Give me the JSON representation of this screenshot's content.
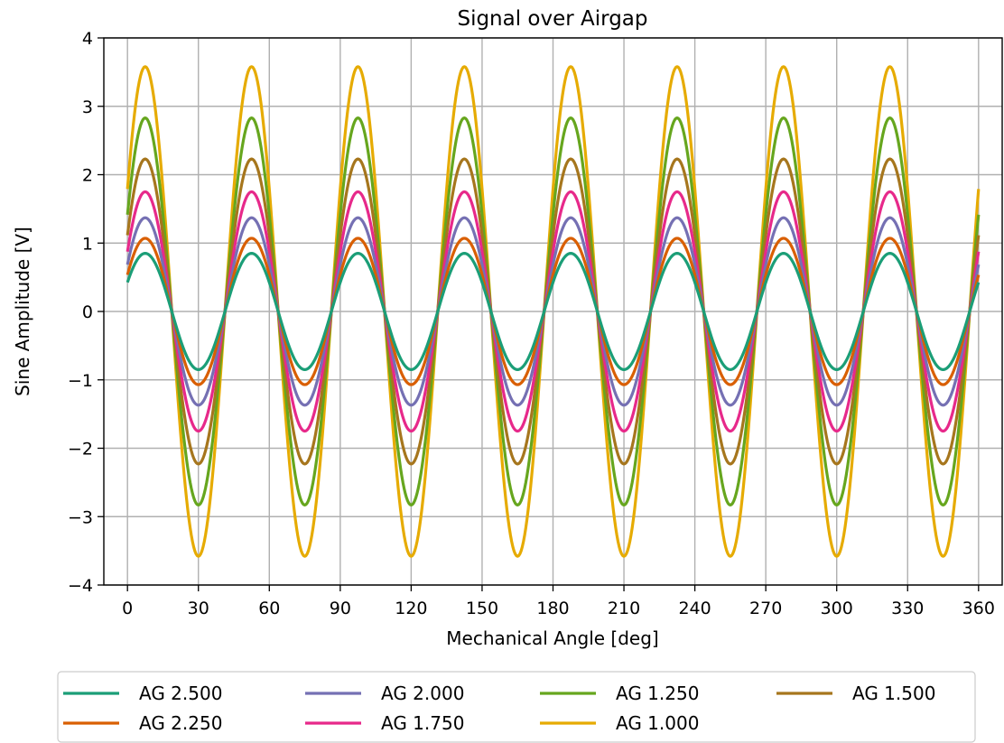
{
  "chart_data": {
    "type": "line",
    "title": "Signal over Airgap",
    "xlabel": "Mechanical Angle [deg]",
    "ylabel": "Sine Amplitude [V]",
    "xlim": [
      -10,
      370
    ],
    "ylim": [
      -4,
      4
    ],
    "xticks": [
      0,
      30,
      60,
      90,
      120,
      150,
      180,
      210,
      240,
      270,
      300,
      330,
      360
    ],
    "xtick_labels": [
      "0",
      "30",
      "60",
      "90",
      "120",
      "150",
      "180",
      "210",
      "240",
      "270",
      "300",
      "330",
      "360"
    ],
    "yticks": [
      -4,
      -3,
      -2,
      -1,
      0,
      1,
      2,
      3,
      4
    ],
    "ytick_labels": [
      "−4",
      "−3",
      "−2",
      "−1",
      "0",
      "1",
      "2",
      "3",
      "4"
    ],
    "grid": true,
    "legend_position": "below the plot, 4 columns",
    "waveform": {
      "function": "sine",
      "cycles_per_revolution": 8,
      "peak_at_deg": 7.5,
      "x_range": [
        0,
        360
      ]
    },
    "series": [
      {
        "name": "AG 2.500",
        "amplitude": 0.85,
        "color": "#1b9e77"
      },
      {
        "name": "AG 2.250",
        "amplitude": 1.07,
        "color": "#d95f02"
      },
      {
        "name": "AG 2.000",
        "amplitude": 1.37,
        "color": "#7570b3"
      },
      {
        "name": "AG 1.750",
        "amplitude": 1.75,
        "color": "#e7298a"
      },
      {
        "name": "AG 1.250",
        "amplitude": 2.83,
        "color": "#66a61e"
      },
      {
        "name": "AG 1.000",
        "amplitude": 3.58,
        "color": "#e6ab02"
      },
      {
        "name": "AG 1.500",
        "amplitude": 2.23,
        "color": "#a6761d"
      }
    ],
    "legend_order": [
      "AG 2.500",
      "AG 2.250",
      "AG 2.000",
      "AG 1.750",
      "AG 1.250",
      "AG 1.000",
      "AG 1.500"
    ],
    "draw_order": [
      "AG 1.000",
      "AG 1.250",
      "AG 1.500",
      "AG 1.750",
      "AG 2.000",
      "AG 2.250",
      "AG 2.500"
    ]
  }
}
